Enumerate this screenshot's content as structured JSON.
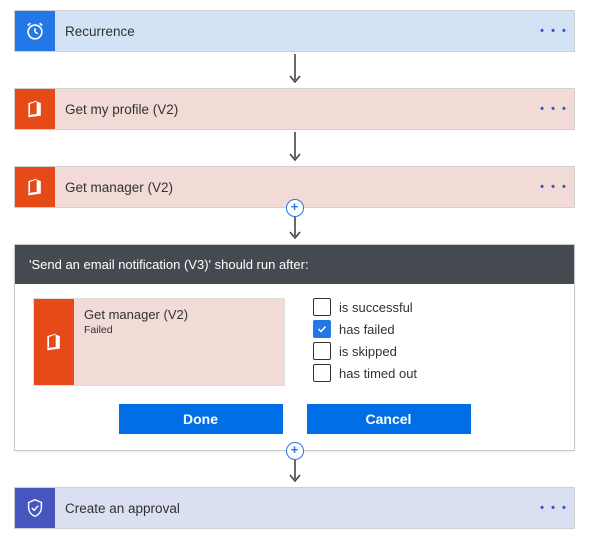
{
  "colors": {
    "recurrence_bg": "#d4e2f5",
    "recurrence_icon": "#2477e6",
    "office_bg": "#f2dbd7",
    "office_icon": "#e64a19",
    "approval_bg": "#dadff2",
    "approval_icon": "#4755be",
    "panel_header_bg": "#444a50",
    "button_bg": "#006fe6",
    "arrow_color": "#444444",
    "plus_color": "#2477e6"
  },
  "steps": {
    "recurrence": {
      "title": "Recurrence",
      "icon": "alarm-clock-icon"
    },
    "get_profile": {
      "title": "Get my profile (V2)",
      "icon": "office-icon"
    },
    "get_manager": {
      "title": "Get manager (V2)",
      "icon": "office-icon"
    },
    "approval": {
      "title": "Create an approval",
      "icon": "approval-shield-icon"
    }
  },
  "run_after_panel": {
    "header": "'Send an email notification (V3)' should run after:",
    "previous_action": {
      "title": "Get manager (V2)",
      "status": "Failed",
      "icon": "office-icon"
    },
    "options": [
      {
        "label": "is successful",
        "checked": false
      },
      {
        "label": "has failed",
        "checked": true
      },
      {
        "label": "is skipped",
        "checked": false
      },
      {
        "label": "has timed out",
        "checked": false
      }
    ],
    "buttons": {
      "done": "Done",
      "cancel": "Cancel"
    }
  },
  "menu_glyph": "• • •",
  "plus_glyph": "+"
}
